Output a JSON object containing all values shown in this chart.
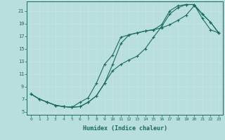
{
  "xlabel": "Humidex (Indice chaleur)",
  "ylabel": "",
  "xlim": [
    -0.5,
    23.5
  ],
  "ylim": [
    4.5,
    22.5
  ],
  "xticks": [
    0,
    1,
    2,
    3,
    4,
    5,
    6,
    7,
    8,
    9,
    10,
    11,
    12,
    13,
    14,
    15,
    16,
    17,
    18,
    19,
    20,
    21,
    22,
    23
  ],
  "yticks": [
    5,
    7,
    9,
    11,
    13,
    15,
    17,
    19,
    21
  ],
  "bg_color": "#b8dede",
  "grid_color": "#c8e8e8",
  "line_color": "#1a6b5a",
  "line1_x": [
    0,
    1,
    2,
    3,
    4,
    5,
    6,
    7,
    8,
    9,
    10,
    11,
    12,
    13,
    14,
    15,
    16,
    17,
    18,
    19,
    20,
    21,
    22,
    23
  ],
  "line1_y": [
    7.8,
    7.0,
    6.5,
    6.0,
    5.8,
    5.7,
    5.8,
    6.5,
    7.5,
    9.5,
    11.5,
    12.5,
    13.2,
    13.8,
    15.0,
    16.8,
    18.5,
    20.5,
    21.5,
    22.0,
    22.0,
    20.5,
    19.2,
    17.5
  ],
  "line2_x": [
    0,
    1,
    2,
    3,
    4,
    5,
    6,
    7,
    8,
    9,
    10,
    11,
    12,
    13,
    14,
    15,
    16,
    17,
    18,
    19,
    20,
    21,
    22,
    23
  ],
  "line2_y": [
    7.8,
    7.0,
    6.5,
    6.0,
    5.8,
    5.7,
    5.8,
    6.5,
    7.5,
    9.5,
    12.5,
    15.8,
    17.2,
    17.5,
    17.8,
    18.0,
    18.3,
    18.8,
    19.5,
    20.3,
    21.8,
    20.5,
    19.2,
    17.5
  ],
  "line3_x": [
    0,
    1,
    2,
    3,
    4,
    5,
    6,
    7,
    8,
    9,
    10,
    11,
    12,
    13,
    14,
    15,
    16,
    17,
    18,
    19,
    20,
    21,
    22,
    23
  ],
  "line3_y": [
    7.8,
    7.0,
    6.5,
    6.0,
    5.8,
    5.7,
    6.5,
    7.2,
    9.5,
    12.5,
    14.0,
    16.8,
    17.2,
    17.5,
    17.8,
    18.0,
    18.8,
    21.0,
    21.8,
    22.0,
    22.0,
    19.8,
    18.0,
    17.5
  ]
}
